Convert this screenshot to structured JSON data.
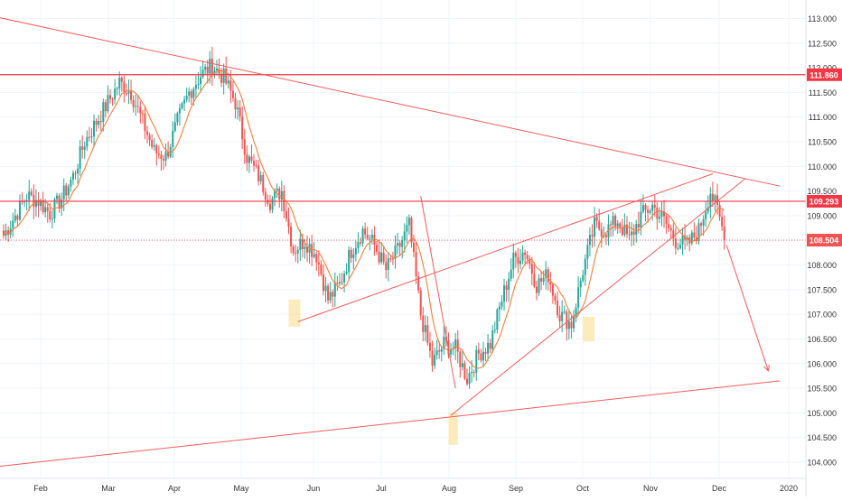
{
  "chart_data": {
    "type": "candlestick",
    "colors": {
      "up": "#26a69a",
      "down": "#ef5350",
      "ma": "#f57f3c",
      "trendline": "#f25c5c",
      "level": "#f23645",
      "highlight": "#fce8b2",
      "axis_text": "#333333",
      "grid": "#f0f3fa"
    },
    "y_axis": {
      "range": [
        103.75,
        113.25
      ],
      "ticks": [
        "104.000",
        "104.500",
        "105.000",
        "105.500",
        "106.000",
        "106.500",
        "107.000",
        "107.500",
        "108.000",
        "108.500",
        "109.000",
        "109.500",
        "110.000",
        "110.500",
        "111.000",
        "111.500",
        "112.000",
        "112.500",
        "113.000"
      ]
    },
    "x_axis": {
      "labels": [
        "Feb",
        "Mar",
        "Apr",
        "May",
        "Jun",
        "Jul",
        "Aug",
        "Sep",
        "Oct",
        "Nov",
        "Dec",
        "2020"
      ]
    },
    "price_labels": [
      {
        "value": 111.86,
        "text": "111.860",
        "style": "level"
      },
      {
        "value": 109.293,
        "text": "109.293",
        "style": "level"
      },
      {
        "value": 108.504,
        "text": "108.504",
        "style": "last"
      }
    ],
    "waypoints": [
      [
        0,
        108.6
      ],
      [
        5,
        109.0
      ],
      [
        10,
        109.4
      ],
      [
        15,
        109.3
      ],
      [
        20,
        109.05
      ],
      [
        25,
        109.35
      ],
      [
        30,
        109.8
      ],
      [
        35,
        110.5
      ],
      [
        40,
        110.9
      ],
      [
        45,
        111.3
      ],
      [
        50,
        111.7
      ],
      [
        55,
        111.5
      ],
      [
        60,
        110.9
      ],
      [
        65,
        110.3
      ],
      [
        70,
        110.2
      ],
      [
        75,
        110.9
      ],
      [
        80,
        111.5
      ],
      [
        85,
        111.85
      ],
      [
        90,
        112.05
      ],
      [
        95,
        111.8
      ],
      [
        100,
        111.3
      ],
      [
        105,
        110.2
      ],
      [
        110,
        109.8
      ],
      [
        115,
        109.3
      ],
      [
        120,
        109.5
      ],
      [
        125,
        108.3
      ],
      [
        130,
        108.5
      ],
      [
        135,
        108.2
      ],
      [
        140,
        107.3
      ],
      [
        145,
        107.6
      ],
      [
        150,
        108.3
      ],
      [
        155,
        108.7
      ],
      [
        160,
        108.4
      ],
      [
        165,
        107.9
      ],
      [
        170,
        108.3
      ],
      [
        175,
        108.8
      ],
      [
        180,
        107.0
      ],
      [
        185,
        106.0
      ],
      [
        190,
        106.4
      ],
      [
        195,
        106.3
      ],
      [
        200,
        105.7
      ],
      [
        205,
        106.2
      ],
      [
        210,
        106.4
      ],
      [
        215,
        107.3
      ],
      [
        220,
        108.1
      ],
      [
        225,
        108.3
      ],
      [
        230,
        107.6
      ],
      [
        235,
        107.8
      ],
      [
        240,
        107.0
      ],
      [
        245,
        106.8
      ],
      [
        250,
        107.9
      ],
      [
        255,
        108.8
      ],
      [
        260,
        108.7
      ],
      [
        265,
        108.9
      ],
      [
        270,
        108.5
      ],
      [
        275,
        109.0
      ],
      [
        280,
        109.2
      ],
      [
        285,
        108.9
      ],
      [
        290,
        108.5
      ],
      [
        295,
        108.4
      ],
      [
        300,
        108.7
      ],
      [
        305,
        109.5
      ],
      [
        308,
        109.1
      ],
      [
        311,
        108.6
      ]
    ],
    "annotations": {
      "highlight_zones": [
        {
          "from": 123,
          "to": 128,
          "low": 106.75,
          "high": 107.3
        },
        {
          "from": 192,
          "to": 196,
          "low": 104.35,
          "high": 105.0
        },
        {
          "from": 250,
          "to": 255,
          "low": 106.45,
          "high": 106.95
        }
      ],
      "trendlines": [
        {
          "x1": -5,
          "y1": 113.05,
          "x2": 335,
          "y2": 109.6
        },
        {
          "x1": -5,
          "y1": 103.9,
          "x2": 335,
          "y2": 105.65
        },
        {
          "x1": 127,
          "y1": 106.85,
          "x2": 306,
          "y2": 109.85
        },
        {
          "x1": 193,
          "y1": 104.95,
          "x2": 320,
          "y2": 109.75
        },
        {
          "x1": 180,
          "y1": 109.4,
          "x2": 195,
          "y2": 105.5
        }
      ],
      "forecast_arrow": {
        "x1": 312,
        "y1": 108.4,
        "x2": 330,
        "y2": 105.85
      },
      "horizontal_lines": [
        111.86,
        109.293
      ],
      "dotted_line": 108.504
    }
  }
}
